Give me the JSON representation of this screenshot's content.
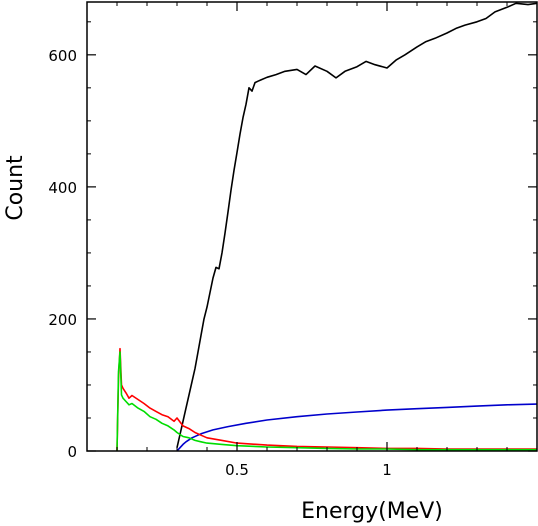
{
  "chart_data": {
    "type": "line",
    "title": "",
    "xlabel": "Energy(MeV)",
    "ylabel": "Count",
    "xlim": [
      0.0,
      1.5
    ],
    "ylim": [
      0,
      680
    ],
    "x_ticks": [
      {
        "value": 0.5,
        "label": "0.5"
      },
      {
        "value": 1.0,
        "label": "1"
      }
    ],
    "y_ticks": [
      {
        "value": 0,
        "label": "0"
      },
      {
        "value": 200,
        "label": "200"
      },
      {
        "value": 400,
        "label": "400"
      },
      {
        "value": 600,
        "label": "600"
      }
    ],
    "grid": false,
    "legend": "none",
    "series": [
      {
        "color": "#000000",
        "points": [
          [
            0.3,
            5
          ],
          [
            0.31,
            25
          ],
          [
            0.32,
            45
          ],
          [
            0.33,
            65
          ],
          [
            0.34,
            85
          ],
          [
            0.35,
            105
          ],
          [
            0.36,
            125
          ],
          [
            0.37,
            150
          ],
          [
            0.38,
            175
          ],
          [
            0.39,
            200
          ],
          [
            0.4,
            218
          ],
          [
            0.41,
            240
          ],
          [
            0.42,
            262
          ],
          [
            0.43,
            278
          ],
          [
            0.44,
            276
          ],
          [
            0.45,
            300
          ],
          [
            0.46,
            330
          ],
          [
            0.47,
            362
          ],
          [
            0.48,
            395
          ],
          [
            0.49,
            425
          ],
          [
            0.5,
            452
          ],
          [
            0.51,
            480
          ],
          [
            0.52,
            505
          ],
          [
            0.53,
            525
          ],
          [
            0.54,
            550
          ],
          [
            0.55,
            545
          ],
          [
            0.56,
            558
          ],
          [
            0.57,
            560
          ],
          [
            0.58,
            562
          ],
          [
            0.6,
            566
          ],
          [
            0.63,
            570
          ],
          [
            0.66,
            575
          ],
          [
            0.7,
            578
          ],
          [
            0.73,
            570
          ],
          [
            0.76,
            583
          ],
          [
            0.8,
            575
          ],
          [
            0.83,
            565
          ],
          [
            0.86,
            575
          ],
          [
            0.9,
            582
          ],
          [
            0.93,
            590
          ],
          [
            0.96,
            585
          ],
          [
            1.0,
            580
          ],
          [
            1.03,
            592
          ],
          [
            1.06,
            600
          ],
          [
            1.1,
            612
          ],
          [
            1.13,
            620
          ],
          [
            1.16,
            625
          ],
          [
            1.2,
            633
          ],
          [
            1.23,
            640
          ],
          [
            1.26,
            645
          ],
          [
            1.3,
            650
          ],
          [
            1.33,
            655
          ],
          [
            1.36,
            665
          ],
          [
            1.4,
            672
          ],
          [
            1.43,
            678
          ],
          [
            1.47,
            676
          ],
          [
            1.5,
            678
          ]
        ]
      },
      {
        "color": "#0000cc",
        "points": [
          [
            0.3,
            0
          ],
          [
            0.31,
            5
          ],
          [
            0.32,
            10
          ],
          [
            0.33,
            14
          ],
          [
            0.35,
            20
          ],
          [
            0.38,
            26
          ],
          [
            0.42,
            32
          ],
          [
            0.47,
            37
          ],
          [
            0.53,
            42
          ],
          [
            0.6,
            47
          ],
          [
            0.7,
            52
          ],
          [
            0.8,
            56
          ],
          [
            0.9,
            59
          ],
          [
            1.0,
            62
          ],
          [
            1.1,
            64
          ],
          [
            1.2,
            66
          ],
          [
            1.3,
            68
          ],
          [
            1.4,
            70
          ],
          [
            1.5,
            71
          ]
        ]
      },
      {
        "color": "#ff0000",
        "points": [
          [
            0.1,
            0
          ],
          [
            0.105,
            110
          ],
          [
            0.11,
            155
          ],
          [
            0.115,
            100
          ],
          [
            0.12,
            95
          ],
          [
            0.13,
            88
          ],
          [
            0.14,
            80
          ],
          [
            0.15,
            84
          ],
          [
            0.17,
            78
          ],
          [
            0.19,
            72
          ],
          [
            0.21,
            65
          ],
          [
            0.23,
            60
          ],
          [
            0.25,
            55
          ],
          [
            0.27,
            52
          ],
          [
            0.29,
            45
          ],
          [
            0.3,
            50
          ],
          [
            0.32,
            38
          ],
          [
            0.34,
            34
          ],
          [
            0.36,
            28
          ],
          [
            0.38,
            24
          ],
          [
            0.4,
            20
          ],
          [
            0.45,
            16
          ],
          [
            0.5,
            12
          ],
          [
            0.6,
            9
          ],
          [
            0.7,
            7
          ],
          [
            0.8,
            6
          ],
          [
            0.9,
            5
          ],
          [
            1.0,
            4
          ],
          [
            1.1,
            4
          ],
          [
            1.2,
            3
          ],
          [
            1.3,
            3
          ],
          [
            1.4,
            3
          ],
          [
            1.5,
            3
          ]
        ]
      },
      {
        "color": "#00dd00",
        "points": [
          [
            0.1,
            0
          ],
          [
            0.105,
            120
          ],
          [
            0.11,
            150
          ],
          [
            0.115,
            85
          ],
          [
            0.12,
            80
          ],
          [
            0.13,
            75
          ],
          [
            0.14,
            70
          ],
          [
            0.15,
            72
          ],
          [
            0.17,
            65
          ],
          [
            0.19,
            60
          ],
          [
            0.21,
            52
          ],
          [
            0.23,
            48
          ],
          [
            0.25,
            42
          ],
          [
            0.27,
            38
          ],
          [
            0.29,
            32
          ],
          [
            0.3,
            28
          ],
          [
            0.32,
            22
          ],
          [
            0.34,
            20
          ],
          [
            0.36,
            16
          ],
          [
            0.38,
            14
          ],
          [
            0.4,
            12
          ],
          [
            0.45,
            10
          ],
          [
            0.5,
            8
          ],
          [
            0.6,
            6
          ],
          [
            0.7,
            5
          ],
          [
            0.8,
            4
          ],
          [
            0.9,
            3
          ],
          [
            1.0,
            3
          ],
          [
            1.1,
            2
          ],
          [
            1.2,
            2
          ],
          [
            1.3,
            2
          ],
          [
            1.4,
            2
          ],
          [
            1.5,
            2
          ]
        ]
      }
    ]
  }
}
